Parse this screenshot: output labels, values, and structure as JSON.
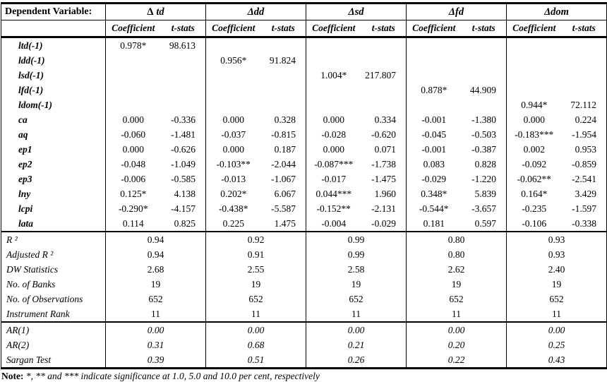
{
  "table": {
    "corner_label": "Dependent Variable:",
    "groups": [
      {
        "delta": "Δ",
        "suffix": "td",
        "sub": [
          "Coefficient",
          "t-stats"
        ]
      },
      {
        "delta": "Δ",
        "suffix": "dd",
        "sub": [
          "Coefficient",
          "t-stats"
        ]
      },
      {
        "delta": "Δ",
        "suffix": "sd",
        "sub": [
          "Coefficient",
          "t-stats"
        ]
      },
      {
        "delta": "Δ",
        "suffix": "fd",
        "sub": [
          "Coefficient",
          "t-stats"
        ]
      },
      {
        "delta": "Δ",
        "suffix": "dom",
        "sub": [
          "Coefficient",
          "t-stats"
        ]
      }
    ],
    "rows": [
      {
        "label": "ltd(-1)",
        "cells": [
          [
            "0.978*",
            "98.613"
          ],
          [
            "",
            ""
          ],
          [
            "",
            ""
          ],
          [
            "",
            ""
          ],
          [
            "",
            ""
          ]
        ]
      },
      {
        "label": "ldd(-1)",
        "cells": [
          [
            "",
            ""
          ],
          [
            "0.956*",
            "91.824"
          ],
          [
            "",
            ""
          ],
          [
            "",
            ""
          ],
          [
            "",
            ""
          ]
        ]
      },
      {
        "label": "lsd(-1)",
        "cells": [
          [
            "",
            ""
          ],
          [
            "",
            ""
          ],
          [
            "1.004*",
            "217.807"
          ],
          [
            "",
            ""
          ],
          [
            "",
            ""
          ]
        ]
      },
      {
        "label": "lfd(-1)",
        "cells": [
          [
            "",
            ""
          ],
          [
            "",
            ""
          ],
          [
            "",
            ""
          ],
          [
            "0.878*",
            "44.909"
          ],
          [
            "",
            ""
          ]
        ]
      },
      {
        "label": "ldom(-1)",
        "cells": [
          [
            "",
            ""
          ],
          [
            "",
            ""
          ],
          [
            "",
            ""
          ],
          [
            "",
            ""
          ],
          [
            "0.944*",
            "72.112"
          ]
        ]
      },
      {
        "label": "ca",
        "cells": [
          [
            "0.000",
            "-0.336"
          ],
          [
            "0.000",
            "0.328"
          ],
          [
            "0.000",
            "0.334"
          ],
          [
            "-0.001",
            "-1.380"
          ],
          [
            "0.000",
            "0.224"
          ]
        ]
      },
      {
        "label": "aq",
        "cells": [
          [
            "-0.060",
            "-1.481"
          ],
          [
            "-0.037",
            "-0.815"
          ],
          [
            "-0.028",
            "-0.620"
          ],
          [
            "-0.045",
            "-0.503"
          ],
          [
            "-0.183***",
            "-1.954"
          ]
        ]
      },
      {
        "label": "ep1",
        "cells": [
          [
            "0.000",
            "-0.626"
          ],
          [
            "0.000",
            "0.187"
          ],
          [
            "0.000",
            "0.071"
          ],
          [
            "-0.001",
            "-0.387"
          ],
          [
            "0.002",
            "0.953"
          ]
        ]
      },
      {
        "label": "ep2",
        "cells": [
          [
            "-0.048",
            "-1.049"
          ],
          [
            "-0.103**",
            "-2.044"
          ],
          [
            "-0.087***",
            "-1.738"
          ],
          [
            "0.083",
            "0.828"
          ],
          [
            "-0.092",
            "-0.859"
          ]
        ]
      },
      {
        "label": "ep3",
        "cells": [
          [
            "-0.006",
            "-0.585"
          ],
          [
            "-0.013",
            "-1.067"
          ],
          [
            "-0.017",
            "-1.475"
          ],
          [
            "-0.029",
            "-1.220"
          ],
          [
            "-0.062**",
            "-2.541"
          ]
        ]
      },
      {
        "label": "lny",
        "cells": [
          [
            "0.125*",
            "4.138"
          ],
          [
            "0.202*",
            "6.067"
          ],
          [
            "0.044***",
            "1.960"
          ],
          [
            "0.348*",
            "5.839"
          ],
          [
            "0.164*",
            "3.429"
          ]
        ]
      },
      {
        "label": "lcpi",
        "cells": [
          [
            "-0.290*",
            "-4.157"
          ],
          [
            "-0.438*",
            "-5.587"
          ],
          [
            "-0.152**",
            "-2.131"
          ],
          [
            "-0.544*",
            "-3.657"
          ],
          [
            "-0.235",
            "-1.597"
          ]
        ]
      },
      {
        "label": "lata",
        "cells": [
          [
            "0.114",
            "0.825"
          ],
          [
            "0.225",
            "1.475"
          ],
          [
            "-0.004",
            "-0.029"
          ],
          [
            "0.181",
            "0.597"
          ],
          [
            "-0.106",
            "-0.338"
          ]
        ]
      }
    ],
    "stats_rows": [
      {
        "label": "R ²",
        "values": [
          "0.94",
          "0.92",
          "0.99",
          "0.80",
          "0.93"
        ]
      },
      {
        "label": "Adjusted R ²",
        "values": [
          "0.94",
          "0.91",
          "0.99",
          "0.80",
          "0.93"
        ]
      },
      {
        "label": "DW Statistics",
        "values": [
          "2.68",
          "2.55",
          "2.58",
          "2.62",
          "2.40"
        ]
      },
      {
        "label": "No. of Banks",
        "values": [
          "19",
          "19",
          "19",
          "19",
          "19"
        ]
      },
      {
        "label": "No. of Observations",
        "values": [
          "652",
          "652",
          "652",
          "652",
          "652"
        ]
      },
      {
        "label": "Instrument Rank",
        "values": [
          "11",
          "11",
          "11",
          "11",
          "11"
        ]
      }
    ],
    "ar_rows": [
      {
        "label": "AR(1)",
        "values": [
          "0.00",
          "0.00",
          "0.00",
          "0.00",
          "0.00"
        ]
      },
      {
        "label": "AR(2)",
        "values": [
          "0.31",
          "0.68",
          "0.21",
          "0.20",
          "0.25"
        ]
      },
      {
        "label": "Sargan Test",
        "values": [
          "0.39",
          "0.51",
          "0.26",
          "0.22",
          "0.43"
        ]
      }
    ],
    "note_label": "Note:",
    "note_text": " *, ** and *** indicate significance at 1.0, 5.0 and 10.0 per cent, respectively"
  }
}
